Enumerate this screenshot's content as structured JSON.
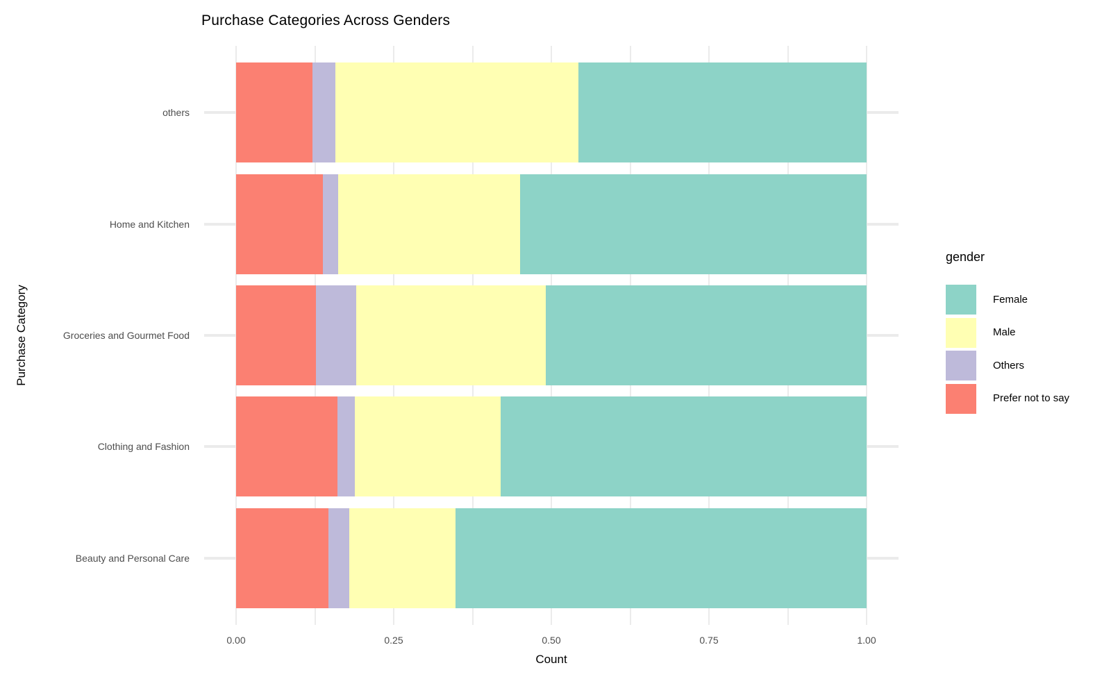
{
  "chart_data": {
    "type": "bar",
    "orientation": "horizontal",
    "stacking": "fill",
    "title": "Purchase Categories Across Genders",
    "xlabel": "Count",
    "ylabel": "Purchase Category",
    "categories": [
      "others",
      "Home and Kitchen",
      "Groceries and Gourmet Food",
      "Clothing and Fashion",
      "Beauty and Personal Care"
    ],
    "series": [
      {
        "name": "Prefer not to say",
        "color": "#FB8072",
        "values": [
          0.121,
          0.138,
          0.127,
          0.161,
          0.146
        ]
      },
      {
        "name": "Others",
        "color": "#BEBADA",
        "values": [
          0.036,
          0.024,
          0.063,
          0.027,
          0.033
        ]
      },
      {
        "name": "Male",
        "color": "#FFFFB3",
        "values": [
          0.386,
          0.288,
          0.301,
          0.232,
          0.169
        ]
      },
      {
        "name": "Female",
        "color": "#8DD3C7",
        "values": [
          0.457,
          0.55,
          0.509,
          0.58,
          0.652
        ]
      }
    ],
    "xlim": [
      -0.05,
      1.05
    ],
    "x_ticks": [
      {
        "value": 0.0,
        "label": "0.00"
      },
      {
        "value": 0.25,
        "label": "0.25"
      },
      {
        "value": 0.5,
        "label": "0.50"
      },
      {
        "value": 0.75,
        "label": "0.75"
      },
      {
        "value": 1.0,
        "label": "1.00"
      }
    ],
    "x_gridlines": [
      0,
      0.125,
      0.25,
      0.375,
      0.5,
      0.625,
      0.75,
      0.875,
      1.0
    ],
    "grid_on": true,
    "legend": {
      "title": "gender",
      "position": "right",
      "entries": [
        {
          "label": "Female",
          "color": "#8DD3C7"
        },
        {
          "label": "Male",
          "color": "#FFFFB3"
        },
        {
          "label": "Others",
          "color": "#BEBADA"
        },
        {
          "label": "Prefer not to say",
          "color": "#FB8072"
        }
      ]
    },
    "colors": {
      "grid": "#EBEBEB",
      "axis_text": "#4D4D4D",
      "title_text": "#000000",
      "background": "#FFFFFF"
    }
  }
}
